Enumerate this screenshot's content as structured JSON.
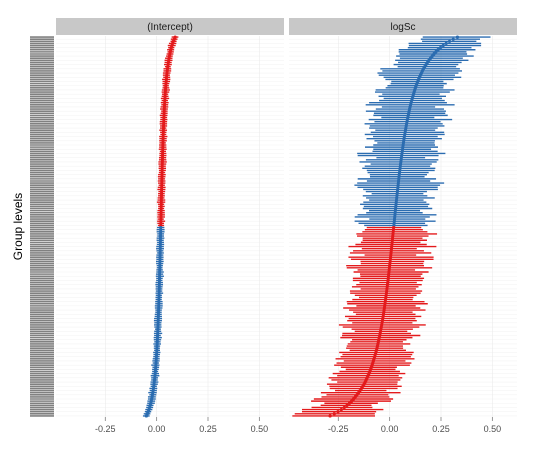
{
  "chart_data": {
    "type": "dotplot",
    "ylabel": "Group levels",
    "colors": {
      "below_zero": "#e31a1c",
      "above_zero": "#2b6cb0",
      "strip_bg": "#c8c8c8",
      "ytick": "#808080"
    },
    "n_levels": 180,
    "panels": [
      {
        "title": "(Intercept)",
        "xlim": [
          -0.49,
          0.62
        ],
        "xticks": [
          -0.25,
          0.0,
          0.25,
          0.5
        ],
        "xtick_labels": [
          "-0.25",
          "0.00",
          "0.25",
          "0.50"
        ],
        "estimate_range": [
          -0.05,
          0.09
        ],
        "halfwidth_range": [
          0.015,
          0.02
        ],
        "color_top": "below_zero",
        "color_bottom": "above_zero"
      },
      {
        "title": "logSc",
        "xlim": [
          -0.49,
          0.62
        ],
        "xticks": [
          -0.25,
          0.0,
          0.25,
          0.5
        ],
        "xtick_labels": [
          "-0.25",
          "0.00",
          "0.25",
          "0.50"
        ],
        "estimate_range": [
          -0.29,
          0.33
        ],
        "halfwidth_range": [
          0.13,
          0.2
        ],
        "color_top": "above_zero",
        "color_bottom": "below_zero"
      }
    ]
  }
}
